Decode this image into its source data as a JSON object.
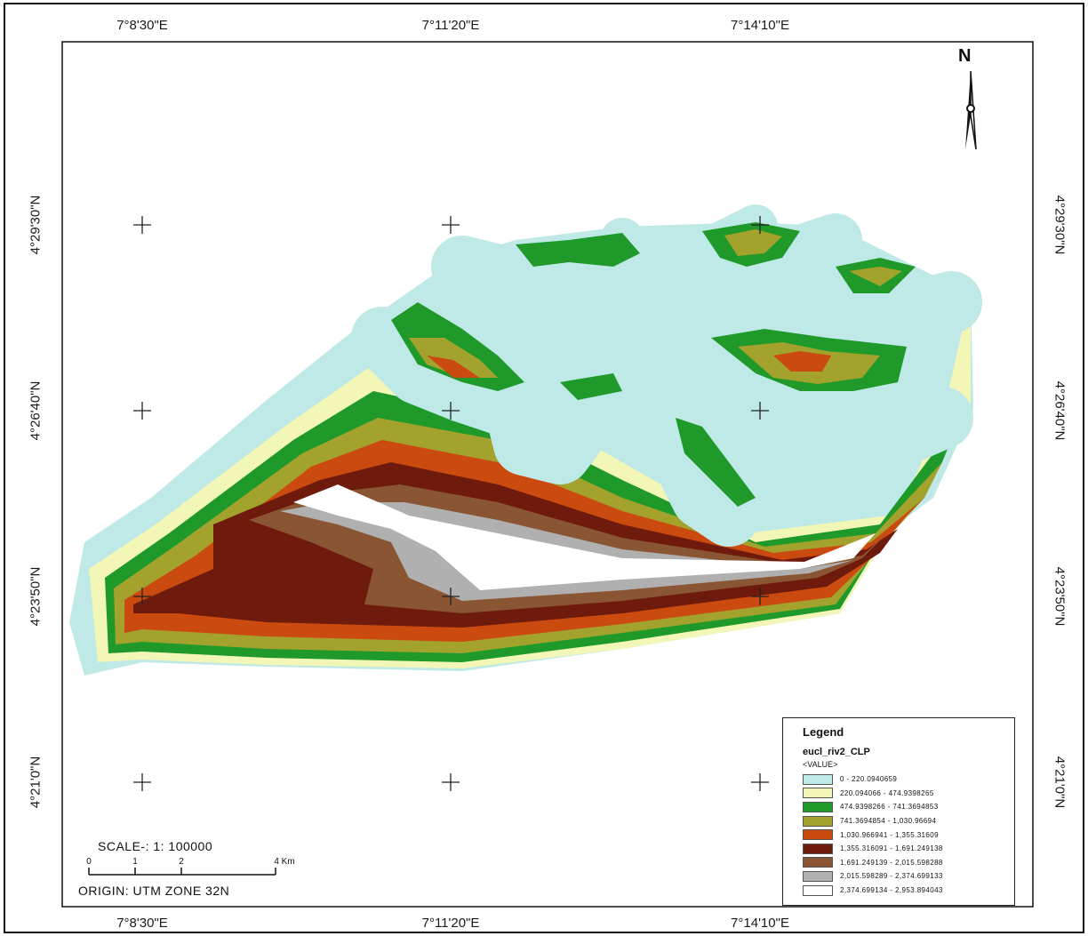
{
  "map": {
    "top_lon_labels": [
      "7°8'30\"E",
      "7°11'20\"E",
      "7°14'10\"E"
    ],
    "bottom_lon_labels": [
      "7°8'30\"E",
      "7°11'20\"E",
      "7°14'10\"E"
    ],
    "left_lat_labels": [
      "4°29'30\"N",
      "4°26'40\"N",
      "4°23'50\"N",
      "4°21'0\"N"
    ],
    "right_lat_labels": [
      "4°29'30\"N",
      "4°26'40\"N",
      "4°23'50\"N",
      "4°21'0\"N"
    ],
    "north_arrow": {
      "letter": "N",
      "icon": "north-arrow-icon"
    }
  },
  "scale": {
    "title": "SCALE-: 1: 100000",
    "ticks": [
      "0",
      "1",
      "2",
      "4 Km"
    ],
    "origin": "ORIGIN: UTM ZONE 32N"
  },
  "legend": {
    "title": "Legend",
    "layer": "eucl_riv2_CLP",
    "field": "<VALUE>",
    "classes": [
      {
        "label": "0 - 220.0940659",
        "color": "#bfe9e6"
      },
      {
        "label": "220.094066 - 474.9398265",
        "color": "#f2f7b7"
      },
      {
        "label": "474.9398266 - 741.3694853",
        "color": "#1f9a2a"
      },
      {
        "label": "741.3694854 - 1,030.96694",
        "color": "#a3a22d"
      },
      {
        "label": "1,030.966941 - 1,355.31609",
        "color": "#cb4a0f"
      },
      {
        "label": "1,355.316091 - 1,691.249138",
        "color": "#6e1a0c"
      },
      {
        "label": "1,691.249139 - 2,015.598288",
        "color": "#8a5533"
      },
      {
        "label": "2,015.598289 - 2,374.699133",
        "color": "#b0b0b0"
      },
      {
        "label": "2,374.699134 - 2,953.894043",
        "color": "#ffffff"
      }
    ]
  }
}
